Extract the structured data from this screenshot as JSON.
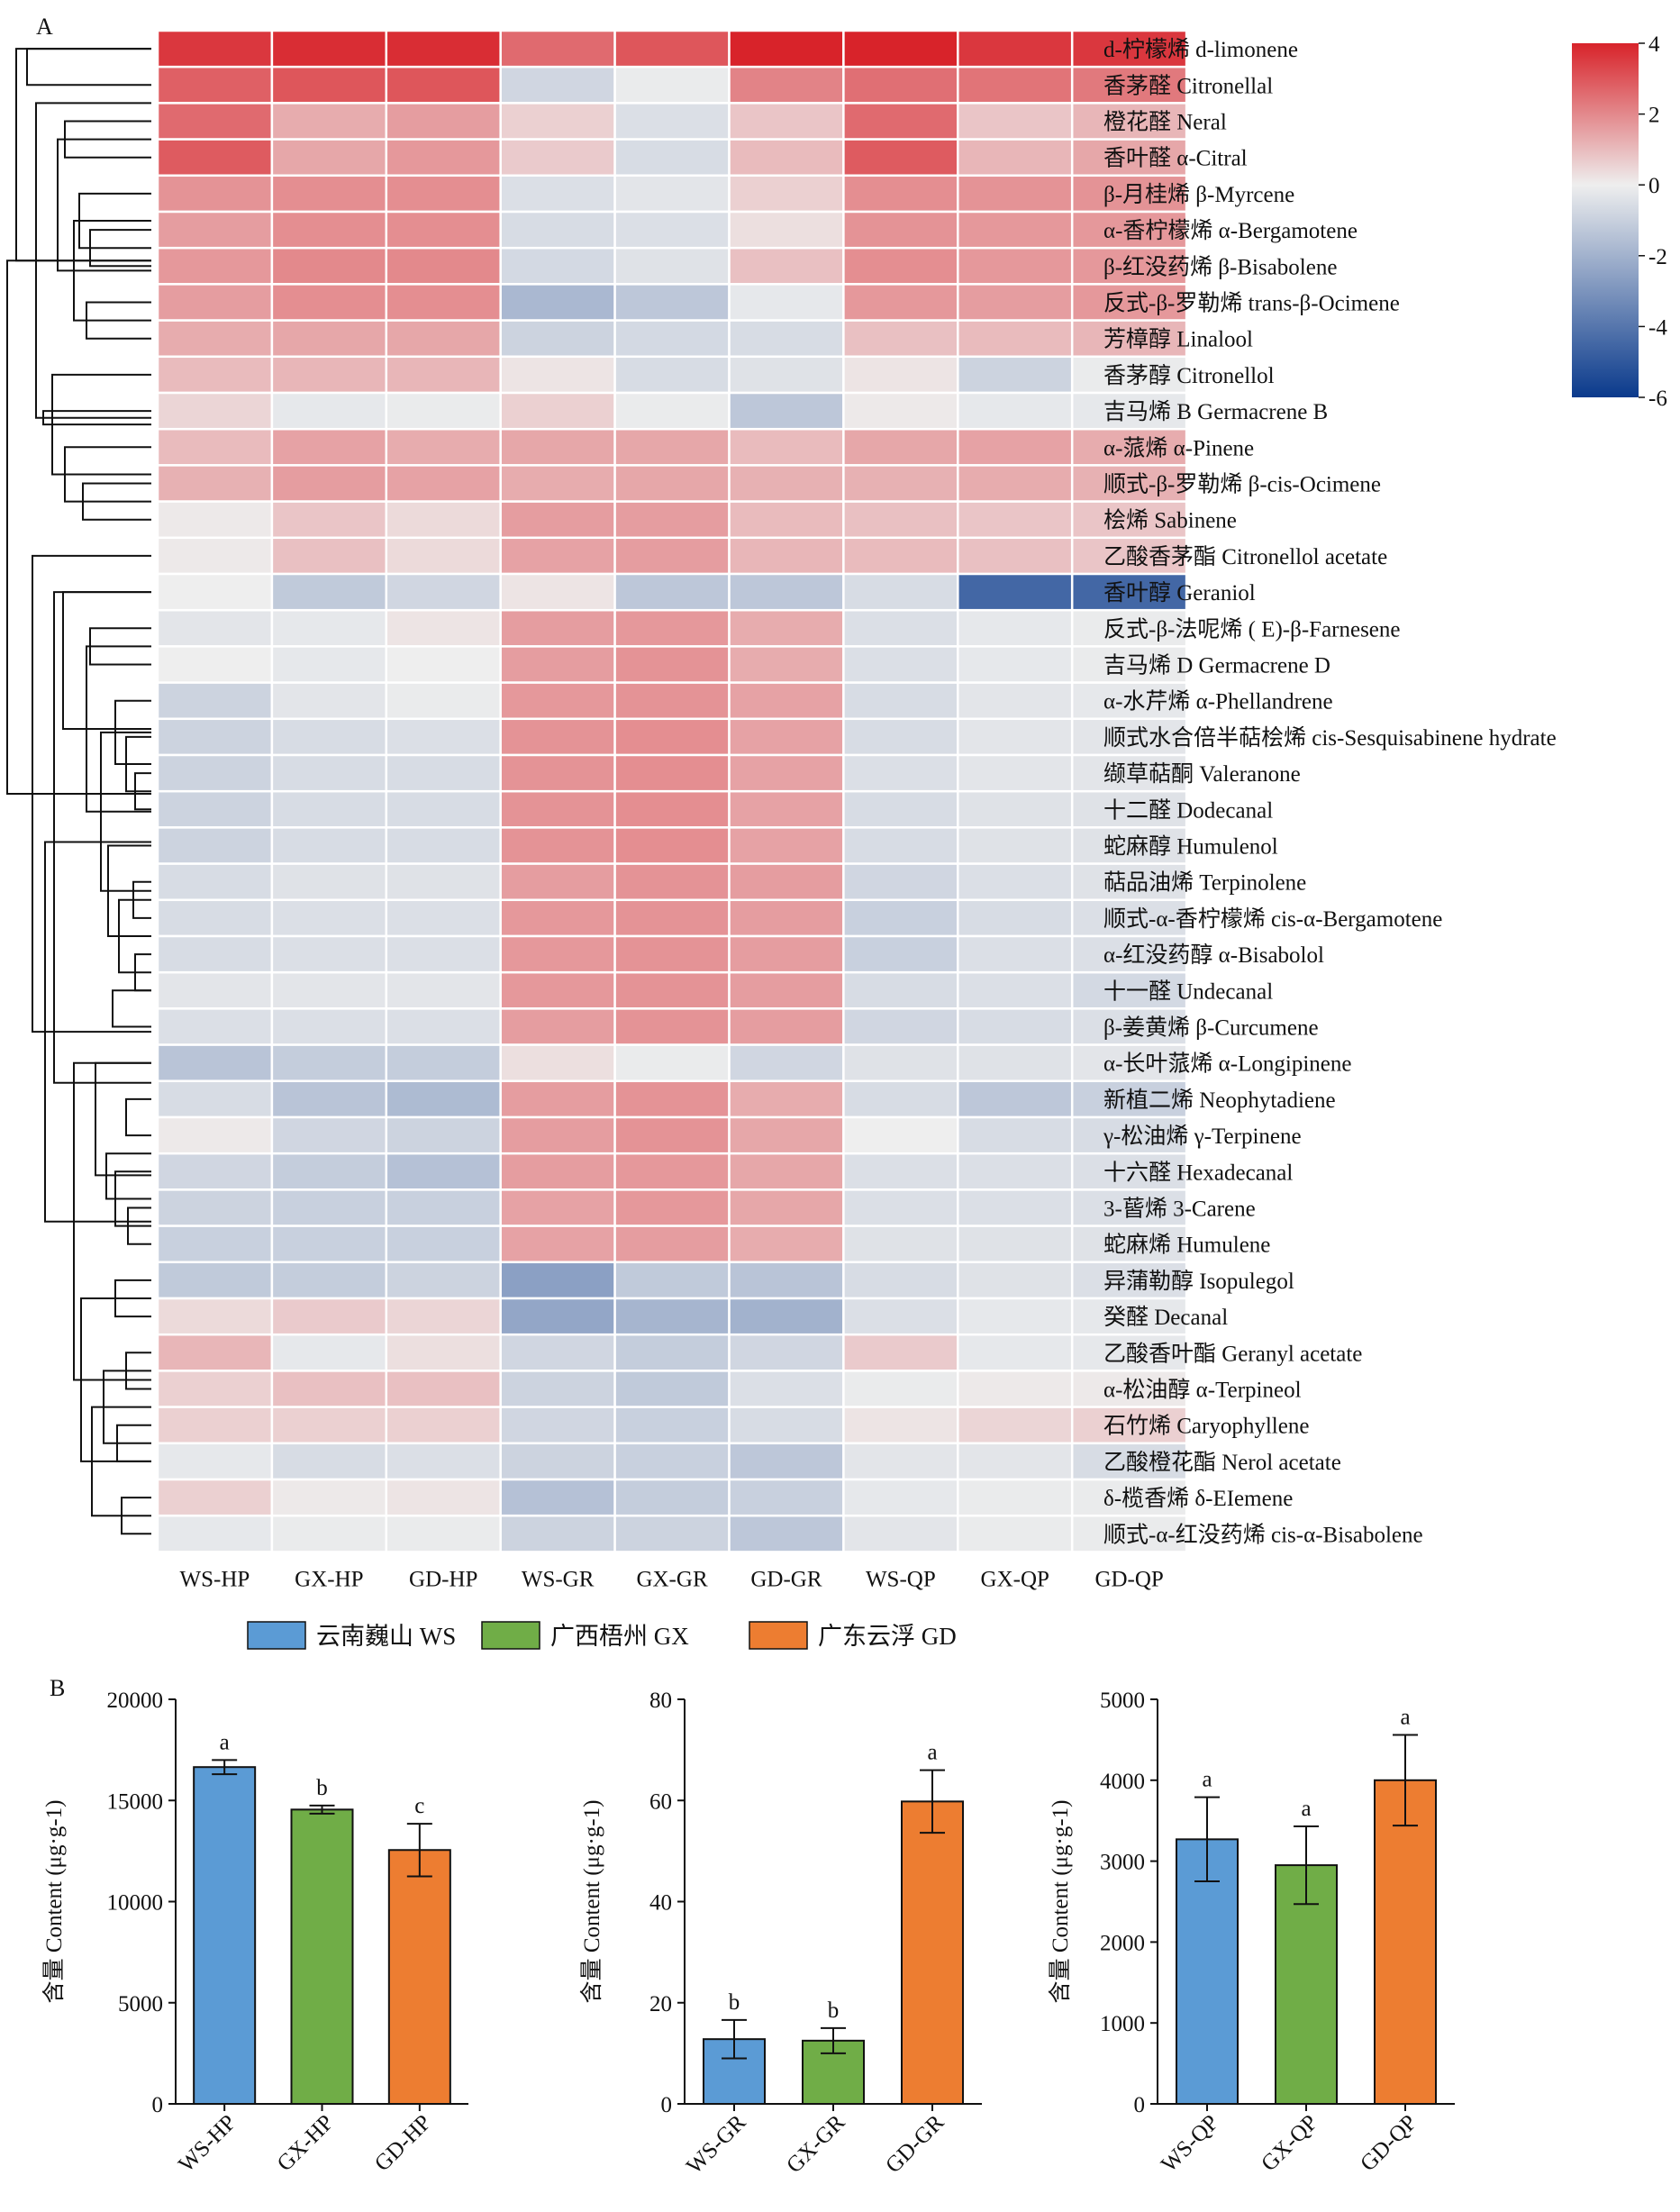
{
  "panels": {
    "a": "A",
    "b": "B"
  },
  "chart_data": [
    {
      "type": "heatmap",
      "columns": [
        "WS-HP",
        "GX-HP",
        "GD-HP",
        "WS-GR",
        "GX-GR",
        "GD-GR",
        "WS-QP",
        "GX-QP",
        "GD-QP"
      ],
      "rows": [
        {
          "label": "d-柠檬烯 d-limonene",
          "values": [
            3.6,
            3.8,
            3.8,
            2.6,
            3.0,
            4.1,
            4.2,
            3.6,
            3.6
          ]
        },
        {
          "label": "香茅醛 Citronellal",
          "values": [
            2.8,
            3.0,
            3.0,
            -0.8,
            -0.1,
            2.1,
            2.5,
            2.4,
            2.3
          ]
        },
        {
          "label": "橙花醛 Neral",
          "values": [
            2.6,
            1.3,
            1.6,
            0.6,
            -0.5,
            0.8,
            2.6,
            0.8,
            1.1
          ]
        },
        {
          "label": "香叶醛 α-Citral",
          "values": [
            2.9,
            1.4,
            1.7,
            0.7,
            -0.6,
            1.0,
            2.9,
            1.1,
            1.4
          ]
        },
        {
          "label": "β-月桂烯 β-Myrcene",
          "values": [
            1.8,
            1.9,
            1.9,
            -0.5,
            -0.3,
            0.6,
            1.9,
            1.8,
            1.8
          ]
        },
        {
          "label": "α-香柠檬烯 α-Bergamotene",
          "values": [
            1.6,
            1.9,
            1.9,
            -0.6,
            -0.5,
            0.3,
            1.8,
            1.7,
            1.7
          ]
        },
        {
          "label": "β-红没药烯 β-Bisabolene",
          "values": [
            1.7,
            2.0,
            2.0,
            -0.7,
            -0.4,
            0.9,
            1.9,
            1.7,
            1.7
          ]
        },
        {
          "label": "反式-β-罗勒烯 trans-β-Ocimene",
          "values": [
            1.6,
            1.9,
            1.9,
            -1.8,
            -1.3,
            -0.2,
            1.7,
            1.6,
            1.7
          ]
        },
        {
          "label": "芳樟醇 Linalool",
          "values": [
            1.3,
            1.4,
            1.4,
            -0.9,
            -0.7,
            -0.6,
            0.9,
            1.0,
            1.1
          ]
        },
        {
          "label": "香茅醇 Citronellol",
          "values": [
            1.0,
            1.1,
            1.1,
            0.2,
            -0.6,
            -0.4,
            0.2,
            -0.9,
            -0.1
          ]
        },
        {
          "label": "吉马烯 B Germacrene B",
          "values": [
            0.5,
            -0.2,
            -0.1,
            0.6,
            -0.1,
            -1.3,
            0.1,
            -0.2,
            -0.2
          ]
        },
        {
          "label": "α-蒎烯 α-Pinene",
          "values": [
            1.0,
            1.5,
            1.3,
            1.4,
            1.4,
            1.0,
            1.4,
            1.5,
            1.3
          ]
        },
        {
          "label": "顺式-β-罗勒烯 β-cis-Ocimene",
          "values": [
            1.2,
            1.6,
            1.5,
            1.3,
            1.4,
            1.2,
            1.2,
            1.3,
            1.2
          ]
        },
        {
          "label": "桧烯 Sabinene",
          "values": [
            0.1,
            0.8,
            0.4,
            1.6,
            1.6,
            1.0,
            0.9,
            0.8,
            0.8
          ]
        },
        {
          "label": "乙酸香茅酯 Citronellol acetate",
          "values": [
            0.1,
            0.9,
            0.4,
            1.5,
            1.6,
            1.1,
            1.0,
            0.9,
            0.8
          ]
        },
        {
          "label": "香叶醇 Geraniol",
          "values": [
            0.0,
            -1.2,
            -0.8,
            0.2,
            -1.3,
            -1.3,
            -0.6,
            -4.5,
            -4.5
          ]
        },
        {
          "label": "反式-β-法呢烯 ( E)-β-Farnesene",
          "values": [
            -0.3,
            -0.2,
            0.2,
            1.6,
            1.7,
            1.3,
            -0.5,
            -0.2,
            -0.1
          ]
        },
        {
          "label": "吉马烯 D Germacrene D",
          "values": [
            0.0,
            -0.2,
            0.0,
            1.6,
            1.8,
            1.3,
            -0.5,
            -0.2,
            -0.1
          ]
        },
        {
          "label": "α-水芹烯 α-Phellandrene",
          "values": [
            -0.9,
            -0.3,
            -0.1,
            1.7,
            1.8,
            1.5,
            -0.6,
            -0.3,
            -0.2
          ]
        },
        {
          "label": "顺式水合倍半萜桧烯 cis-Sesquisabinene hydrate",
          "values": [
            -0.9,
            -0.6,
            -0.5,
            1.8,
            1.9,
            1.5,
            -0.6,
            -0.3,
            -0.3
          ]
        },
        {
          "label": "缬草萜酮 Valeranone",
          "values": [
            -0.9,
            -0.6,
            -0.6,
            1.8,
            1.9,
            1.5,
            -0.5,
            -0.3,
            -0.3
          ]
        },
        {
          "label": "十二醛 Dodecanal",
          "values": [
            -0.9,
            -0.6,
            -0.6,
            1.8,
            1.9,
            1.5,
            -0.6,
            -0.4,
            -0.4
          ]
        },
        {
          "label": "蛇麻醇 Humulenol",
          "values": [
            -0.9,
            -0.6,
            -0.6,
            1.8,
            1.9,
            1.5,
            -0.6,
            -0.4,
            -0.4
          ]
        },
        {
          "label": "萜品油烯 Terpinolene",
          "values": [
            -0.6,
            -0.4,
            -0.4,
            1.6,
            1.8,
            1.6,
            -0.8,
            -0.5,
            -0.4
          ]
        },
        {
          "label": "顺式-α-香柠檬烯 cis-α-Bergamotene",
          "values": [
            -0.6,
            -0.5,
            -0.5,
            1.7,
            1.8,
            1.6,
            -1.0,
            -0.6,
            -0.5
          ]
        },
        {
          "label": "α-红没药醇 α-Bisabolol",
          "values": [
            -0.6,
            -0.5,
            -0.5,
            1.7,
            1.8,
            1.6,
            -1.0,
            -0.5,
            -0.5
          ]
        },
        {
          "label": "十一醛 Undecanal",
          "values": [
            -0.3,
            -0.3,
            -0.3,
            1.7,
            1.8,
            1.6,
            -0.6,
            -0.5,
            -0.7
          ]
        },
        {
          "label": "β-姜黄烯 β-Curcumene",
          "values": [
            -0.5,
            -0.5,
            -0.5,
            1.6,
            1.8,
            1.6,
            -0.8,
            -0.6,
            -0.5
          ]
        },
        {
          "label": "α-长叶蒎烯 α-Longipinene",
          "values": [
            -1.4,
            -1.1,
            -1.1,
            0.3,
            -0.1,
            -0.8,
            -0.4,
            -0.4,
            -0.3
          ]
        },
        {
          "label": "新植二烯 Neophytadiene",
          "values": [
            -0.6,
            -1.4,
            -1.7,
            1.6,
            1.8,
            1.3,
            -0.6,
            -1.3,
            -1.0
          ]
        },
        {
          "label": "γ-松油烯 γ-Terpinene",
          "values": [
            0.1,
            -0.8,
            -0.9,
            1.6,
            1.8,
            1.4,
            0.0,
            -0.6,
            -0.6
          ]
        },
        {
          "label": "十六醛 Hexadecanal",
          "values": [
            -0.8,
            -1.1,
            -1.5,
            1.6,
            1.7,
            1.4,
            -0.5,
            -0.5,
            -0.5
          ]
        },
        {
          "label": "3-蒈烯 3-Carene",
          "values": [
            -0.9,
            -1.0,
            -1.0,
            1.5,
            1.7,
            1.4,
            -0.5,
            -0.5,
            -0.5
          ]
        },
        {
          "label": "蛇麻烯 Humulene",
          "values": [
            -1.0,
            -1.0,
            -1.0,
            1.5,
            1.6,
            1.3,
            -0.4,
            -0.4,
            -0.4
          ]
        },
        {
          "label": "异蒲勒醇 Isopulegol",
          "values": [
            -1.2,
            -1.1,
            -0.9,
            -2.6,
            -1.2,
            -1.4,
            -0.6,
            -0.4,
            -0.5
          ]
        },
        {
          "label": "癸醛 Decanal",
          "values": [
            0.4,
            0.7,
            0.5,
            -2.4,
            -1.9,
            -2.0,
            -0.5,
            -0.2,
            -0.2
          ]
        },
        {
          "label": "乙酸香叶酯 Geranyl acetate",
          "values": [
            1.1,
            -0.2,
            0.3,
            -0.8,
            -1.1,
            -0.8,
            0.7,
            -0.2,
            -0.2
          ]
        },
        {
          "label": "α-松油醇 α-Terpineol",
          "values": [
            0.6,
            0.9,
            0.9,
            -0.9,
            -1.2,
            -0.5,
            -0.1,
            0.1,
            0.1
          ]
        },
        {
          "label": "石竹烯 Caryophyllene",
          "values": [
            0.6,
            0.6,
            0.6,
            -0.8,
            -1.0,
            -0.6,
            0.2,
            0.5,
            0.6
          ]
        },
        {
          "label": "乙酸橙花酯 Nerol acetate",
          "values": [
            -0.2,
            -0.6,
            -0.5,
            -0.9,
            -1.0,
            -1.3,
            -0.3,
            -0.3,
            -0.6
          ]
        },
        {
          "label": "δ-榄香烯 δ-EIemene",
          "values": [
            0.6,
            0.1,
            0.2,
            -1.5,
            -1.1,
            -1.0,
            -0.2,
            -0.1,
            -0.1
          ]
        },
        {
          "label": "顺式-α-红没药烯 cis-α-Bisabolene",
          "values": [
            -0.2,
            -0.1,
            -0.1,
            -0.9,
            -0.9,
            -1.3,
            -0.3,
            -0.1,
            -0.1
          ]
        }
      ],
      "colorbar": {
        "range": [
          -6,
          4
        ],
        "ticks": [
          "4",
          "2",
          "0",
          "-2",
          "-4",
          "-6"
        ],
        "colors": {
          "high": "#d8232a",
          "mid": "#eeeeee",
          "low": "#0a3a8c"
        }
      }
    },
    {
      "type": "bar",
      "categories": [
        "WS-HP",
        "GX-HP",
        "GD-HP"
      ],
      "values": [
        16650,
        14550,
        12550
      ],
      "errors": [
        350,
        200,
        1300
      ],
      "letters": [
        "a",
        "b",
        "c"
      ],
      "ylabel": "含量 Content (μg·g-1)",
      "ylim": [
        0,
        20000
      ],
      "yticks": [
        "0",
        "5000",
        "10000",
        "15000",
        "20000"
      ]
    },
    {
      "type": "bar",
      "categories": [
        "WS-GR",
        "GX-GR",
        "GD-GR"
      ],
      "values": [
        12.8,
        12.5,
        59.8
      ],
      "errors": [
        3.8,
        2.5,
        6.2
      ],
      "letters": [
        "b",
        "b",
        "a"
      ],
      "ylabel": "含量 Content (μg·g-1)",
      "ylim": [
        0,
        80
      ],
      "yticks": [
        "0",
        "20",
        "40",
        "60",
        "80"
      ]
    },
    {
      "type": "bar",
      "categories": [
        "WS-QP",
        "GX-QP",
        "GD-QP"
      ],
      "values": [
        3270,
        2950,
        4000
      ],
      "errors": [
        520,
        480,
        560
      ],
      "letters": [
        "a",
        "a",
        "a"
      ],
      "ylabel": "含量 Content (μg·g-1)",
      "ylim": [
        0,
        5000
      ],
      "yticks": [
        "0",
        "1000",
        "2000",
        "3000",
        "4000",
        "5000"
      ]
    }
  ],
  "legend": [
    {
      "label": "云南巍山 WS",
      "color": "#5b9bd5"
    },
    {
      "label": "广西梧州 GX",
      "color": "#70ad47"
    },
    {
      "label": "广东云浮 GD",
      "color": "#ed7d31"
    }
  ]
}
